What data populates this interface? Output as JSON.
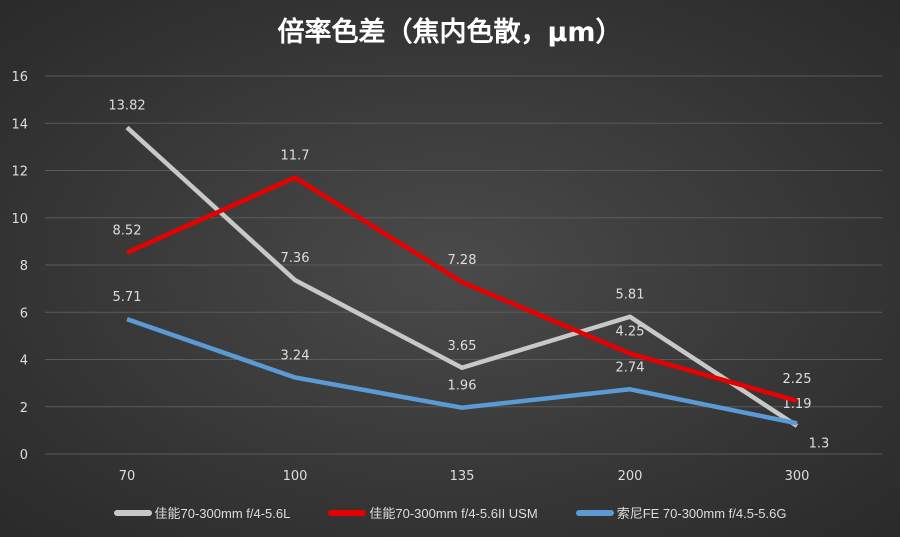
{
  "chart_data": {
    "type": "line",
    "title": "倍率色差（焦内色散，μm）",
    "categories": [
      "70",
      "100",
      "135",
      "200",
      "300"
    ],
    "ylim": [
      0,
      16
    ],
    "yticks": [
      0,
      2,
      4,
      6,
      8,
      10,
      12,
      14,
      16
    ],
    "grid": true,
    "legend_position": "bottom",
    "series": [
      {
        "name": "佳能70-300mm f/4-5.6L",
        "color": "#c8c8c8",
        "values": [
          13.82,
          7.36,
          3.65,
          5.81,
          1.19
        ]
      },
      {
        "name": "佳能70-300mm f/4-5.6II USM",
        "color": "#e80000",
        "values": [
          8.52,
          11.7,
          7.28,
          4.25,
          2.25
        ]
      },
      {
        "name": "索尼FE 70-300mm f/4.5-5.6G",
        "color": "#5b9bd5",
        "values": [
          5.71,
          3.24,
          1.96,
          2.74,
          1.3
        ]
      }
    ]
  }
}
